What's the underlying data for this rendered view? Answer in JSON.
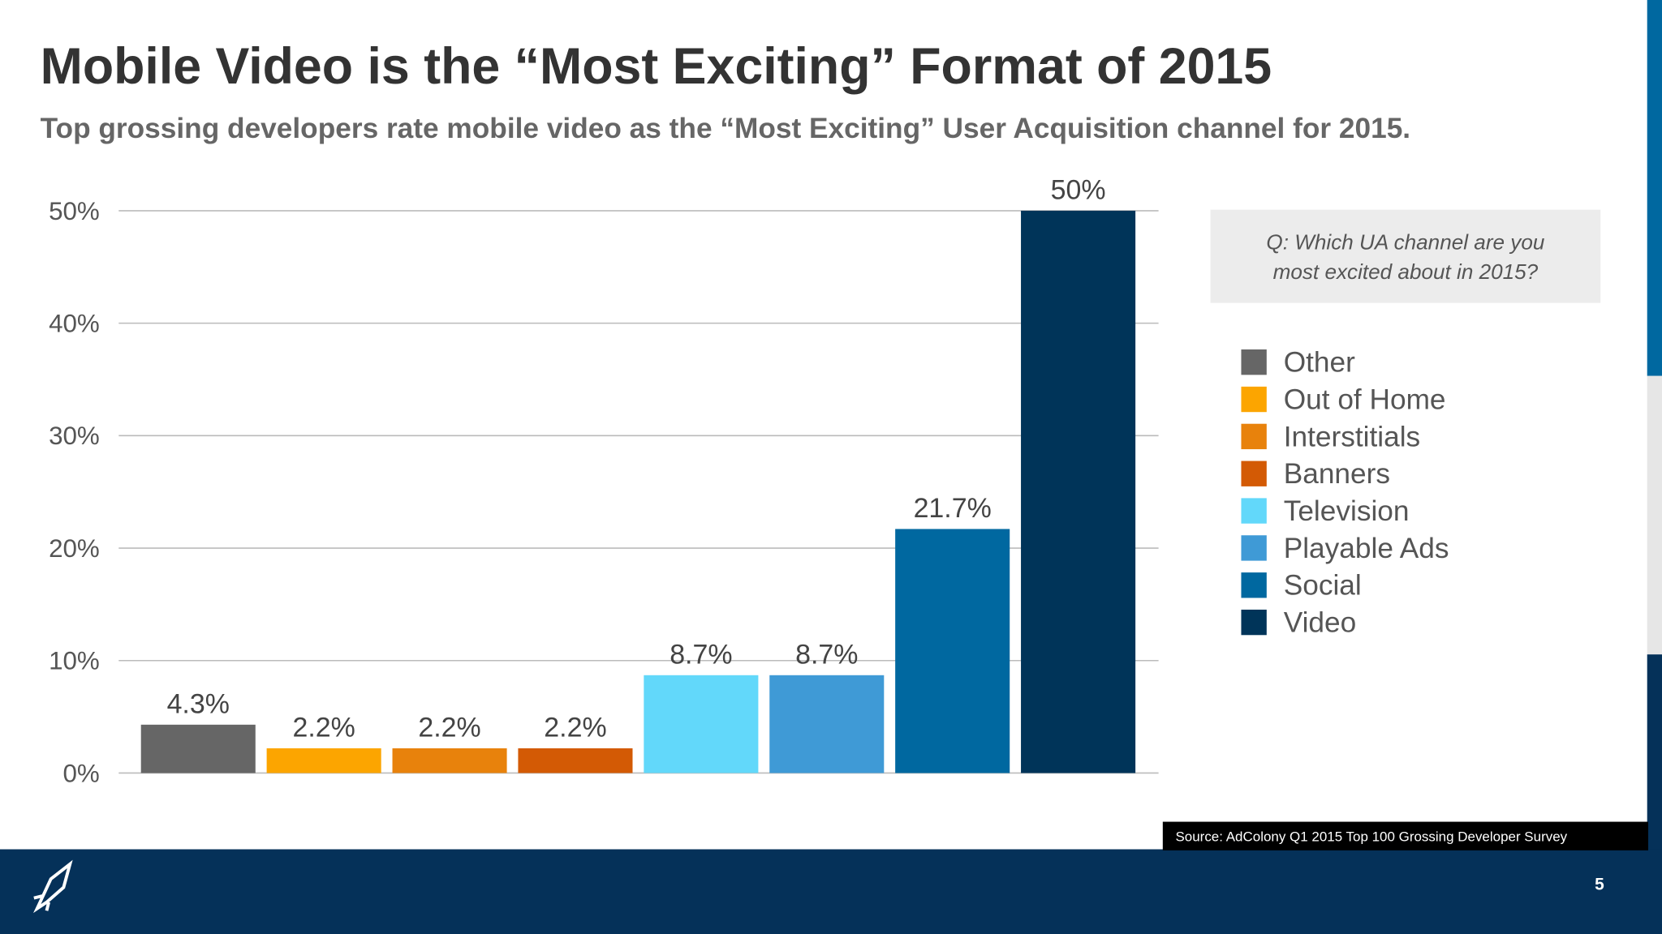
{
  "chart_data": {
    "type": "bar",
    "title": "Mobile Video is the “Most Exciting” Format of 2015",
    "subtitle": "Top grossing developers rate mobile video as the “Most Exciting” User Acquisition channel for 2015.",
    "question": [
      "Q:  Which UA channel are you",
      "most excited about in 2015?"
    ],
    "source": "Source: AdColony Q1 2015 Top 100 Grossing Developer Survey",
    "page_number": "5",
    "categories": [
      "Other",
      "Out of Home",
      "Interstitials",
      "Banners",
      "Television",
      "Playable Ads",
      "Social",
      "Video"
    ],
    "values": [
      4.3,
      2.2,
      2.2,
      2.2,
      8.7,
      8.7,
      21.7,
      50
    ],
    "value_labels": [
      "4.3%",
      "2.2%",
      "2.2%",
      "2.2%",
      "8.7%",
      "8.7%",
      "21.7%",
      "50%"
    ],
    "colors": [
      "#666666",
      "#fca500",
      "#e8820c",
      "#d35a05",
      "#62d8fa",
      "#3f9ad6",
      "#0068a0",
      "#003459"
    ],
    "ylim": [
      0,
      50
    ],
    "yticks": [
      {
        "value": 0,
        "label": "0%"
      },
      {
        "value": 10,
        "label": "10%"
      },
      {
        "value": 20,
        "label": "20%"
      },
      {
        "value": 30,
        "label": "30%"
      },
      {
        "value": 40,
        "label": "40%"
      },
      {
        "value": 50,
        "label": "50%"
      }
    ],
    "grid": true
  }
}
